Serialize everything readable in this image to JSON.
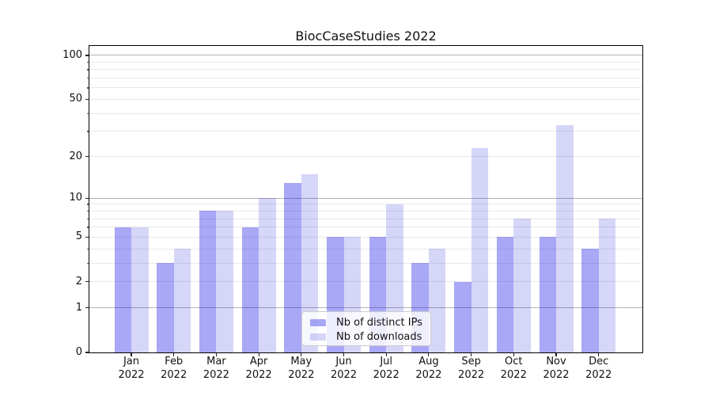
{
  "chart_data": {
    "type": "bar",
    "title": "BiocCaseStudies 2022",
    "x_year": "2022",
    "categories": [
      "Jan",
      "Feb",
      "Mar",
      "Apr",
      "May",
      "Jun",
      "Jul",
      "Aug",
      "Sep",
      "Oct",
      "Nov",
      "Dec"
    ],
    "series": [
      {
        "name": "Nb of distinct IPs",
        "color": "rgba(0,0,230,0.34)",
        "values": [
          6,
          3,
          8,
          6,
          13,
          5,
          5,
          3,
          2,
          5,
          5,
          4
        ]
      },
      {
        "name": "Nb of downloads",
        "color": "rgba(0,0,215,0.16)",
        "values": [
          6,
          4,
          8,
          10,
          15,
          5,
          9,
          4,
          23,
          7,
          33,
          7
        ]
      }
    ],
    "yscale": "log1p",
    "ylim": [
      0,
      116
    ],
    "yticks": [
      0,
      1,
      2,
      5,
      10,
      20,
      50,
      100
    ],
    "yticks_major_grid": [
      1,
      10,
      100
    ],
    "yticks_minor_grid": [
      2,
      3,
      4,
      5,
      6,
      7,
      8,
      9,
      20,
      30,
      40,
      50,
      60,
      70,
      80,
      90
    ],
    "grid": "horizontal",
    "legend_position": "lower-center",
    "colors": {
      "major_grid": "#b3b3b3",
      "minor_grid": "#e9e9e9",
      "spine": "#000000",
      "text": "#111111",
      "background": "#ffffff"
    }
  }
}
